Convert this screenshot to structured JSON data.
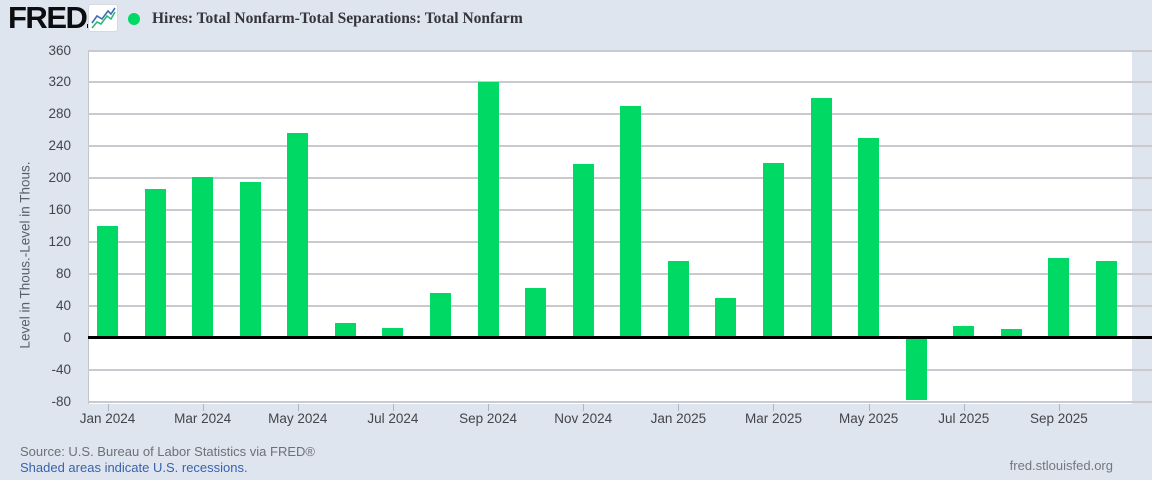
{
  "page": {
    "logo": "FRED",
    "source": "Source: U.S. Bureau of Labor Statistics via FRED®",
    "recessions_note": "Shaded areas indicate U.S. recessions.",
    "site_link": "fred.stlouisfed.org"
  },
  "chart_data": {
    "type": "bar",
    "title": "Hires: Total Nonfarm-Total Separations: Total Nonfarm",
    "ylabel": "Level in Thous.-Level in Thous.",
    "ylim": [
      -80,
      360
    ],
    "ytick_step": 40,
    "grid": true,
    "legend_position": "top-left",
    "bar_color": "#00da64",
    "x_labeled_every": 2,
    "categories": [
      "Jan 2024",
      "Feb 2024",
      "Mar 2024",
      "Apr 2024",
      "May 2024",
      "Jun 2024",
      "Jul 2024",
      "Aug 2024",
      "Sep 2024",
      "Oct 2024",
      "Nov 2024",
      "Dec 2024",
      "Jan 2025",
      "Feb 2025",
      "Mar 2025",
      "Apr 2025",
      "May 2025",
      "Jun 2025",
      "Jul 2025",
      "Aug 2025",
      "Sep 2025",
      "Oct 2025"
    ],
    "values": [
      140,
      186,
      202,
      195,
      257,
      19,
      12,
      56,
      320,
      62,
      218,
      290,
      96,
      50,
      219,
      300,
      250,
      -78,
      15,
      11,
      100,
      96
    ]
  },
  "colors": {
    "background": "#dee5ef",
    "plot_background": "#ffffff",
    "gridline": "#c9cacf",
    "zero_line": "#000000",
    "bar": "#00da64",
    "axis_text": "#434549",
    "axis_title_text": "#596069",
    "title_text": "#35353b",
    "source_text": "#6d7176",
    "link_text": "#3a62ab",
    "tick_mark": "#aab5c5"
  }
}
